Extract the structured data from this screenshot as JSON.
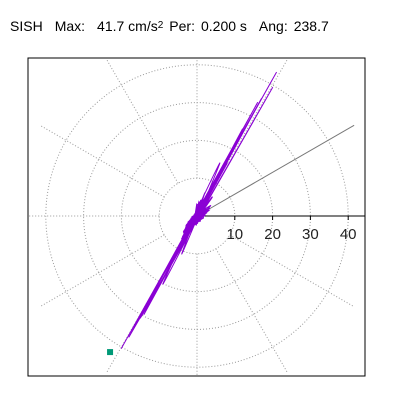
{
  "header": {
    "station": "SISH",
    "max_label": "Max:",
    "max_value": "41.7 cm/s",
    "max_exp": "2",
    "per_label": "Per:",
    "per_value": "0.200 s",
    "ang_label": "Ang:",
    "ang_value": "238.7"
  },
  "chart_data": {
    "type": "scatter",
    "title": "SISH",
    "subtitle": "Max: 41.7 cm/s2  Per: 0.200 s  Ang: 238.7",
    "xlabel": "",
    "ylabel": "",
    "coordinate_system": "polar",
    "radial_ticks": [
      "10",
      "20",
      "30",
      "40"
    ],
    "radial_tick_values": [
      10,
      20,
      30,
      40
    ],
    "radial_range": [
      0,
      40
    ],
    "angle_grid_deg": 30,
    "grid": true,
    "legend": "none",
    "series": [
      {
        "color": "#8a00d4",
        "marker": "line",
        "x": [
          0,
          2,
          -1,
          3,
          -2,
          1,
          -3,
          4,
          -4,
          2,
          -1,
          0
        ],
        "y": [
          0,
          2,
          -2,
          4,
          -3,
          1,
          -5,
          5,
          -6,
          3,
          -2,
          0
        ]
      },
      {
        "color": "#8a00d4",
        "marker": "line",
        "x": [
          -1,
          3,
          -5,
          8,
          -8,
          12,
          -11,
          16,
          -15,
          20,
          -18,
          21,
          -20,
          17,
          -14,
          12,
          -9,
          6,
          -4,
          2,
          -1,
          0
        ],
        "y": [
          -1,
          6,
          -9,
          14,
          -15,
          22,
          -19,
          30,
          -27,
          34,
          -32,
          38,
          -35,
          31,
          -26,
          23,
          -18,
          14,
          -10,
          6,
          -3,
          0
        ]
      }
    ],
    "end_point": {
      "x": -23,
      "y": -36,
      "color": "#009977"
    },
    "angle_line_deg": 30,
    "colors": {
      "trace": "#8a00d4",
      "grid": "#999999",
      "end_marker": "#009977"
    }
  }
}
